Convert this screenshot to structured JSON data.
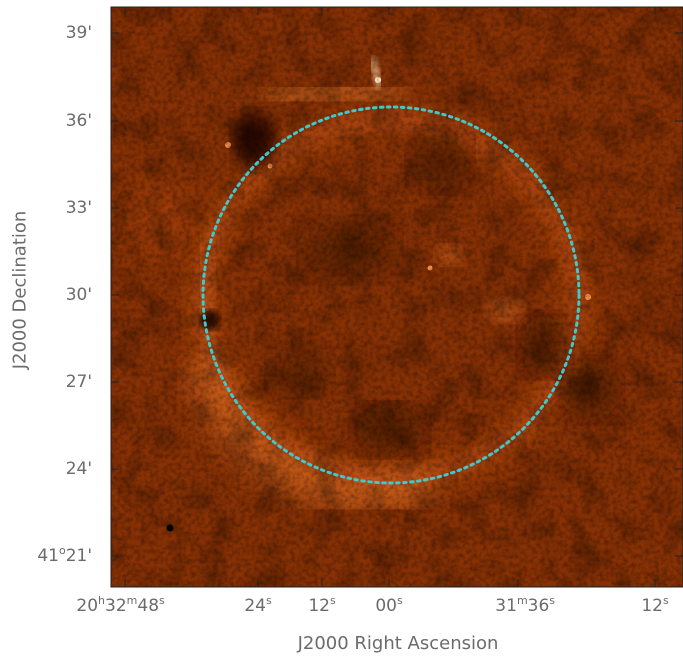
{
  "figure": {
    "xlabel": "J2000 Right Ascension",
    "ylabel": "J2000 Declination",
    "colormap": [
      "#000000",
      "#4a1a00",
      "#8a3100",
      "#c24a0a",
      "#f07a2a",
      "#ffc080"
    ],
    "circle_color": "#40c8cc",
    "frame_color": "#222222"
  },
  "yticks": [
    {
      "deg": "",
      "arc": "39'"
    },
    {
      "deg": "",
      "arc": "36'"
    },
    {
      "deg": "",
      "arc": "33'"
    },
    {
      "deg": "",
      "arc": "30'"
    },
    {
      "deg": "",
      "arc": "27'"
    },
    {
      "deg": "",
      "arc": "24'"
    },
    {
      "deg": "41",
      "deg_sup": "o",
      "arc": "21'"
    }
  ],
  "xticks": [
    {
      "h": "20",
      "h_sup": "h",
      "m": "32",
      "m_sup": "m",
      "s": "48",
      "s_sup": "s"
    },
    {
      "s": "24",
      "s_sup": "s"
    },
    {
      "s": "12",
      "s_sup": "s"
    },
    {
      "s": "00",
      "s_sup": "s"
    },
    {
      "m": "31",
      "m_sup": "m",
      "s": "36",
      "s_sup": "s"
    },
    {
      "s": "12",
      "s_sup": "s"
    }
  ]
}
